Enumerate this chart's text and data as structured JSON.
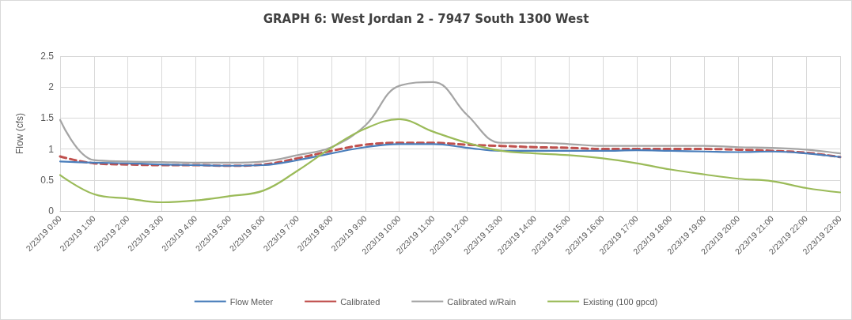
{
  "chart_data": {
    "type": "line",
    "title": "GRAPH 6: West Jordan 2 - 7947 South 1300 West",
    "ylabel": "Flow (cfs)",
    "categories": [
      "2/23/19 0:00",
      "2/23/19 1:00",
      "2/23/19 2:00",
      "2/23/19 3:00",
      "2/23/19 4:00",
      "2/23/19 5:00",
      "2/23/19 6:00",
      "2/23/19 7:00",
      "2/23/19 8:00",
      "2/23/19 9:00",
      "2/23/19 10:00",
      "2/23/19 11:00",
      "2/23/19 12:00",
      "2/23/19 13:00",
      "2/23/19 14:00",
      "2/23/19 15:00",
      "2/23/19 16:00",
      "2/23/19 17:00",
      "2/23/19 18:00",
      "2/23/19 19:00",
      "2/23/19 20:00",
      "2/23/19 21:00",
      "2/23/19 22:00",
      "2/23/19 23:00"
    ],
    "series": [
      {
        "name": "Flow Meter",
        "color": "#4a7ebb",
        "line_style": "solid",
        "values": [
          0.8,
          0.78,
          0.77,
          0.75,
          0.74,
          0.73,
          0.74,
          0.82,
          0.93,
          1.03,
          1.08,
          1.08,
          1.02,
          0.97,
          0.97,
          0.97,
          0.97,
          0.98,
          0.97,
          0.96,
          0.95,
          0.96,
          0.93,
          0.87
        ]
      },
      {
        "name": "Calibrated",
        "color": "#c0504d",
        "line_style": "dashed",
        "values": [
          0.88,
          0.77,
          0.75,
          0.74,
          0.74,
          0.73,
          0.75,
          0.85,
          0.97,
          1.07,
          1.1,
          1.1,
          1.07,
          1.05,
          1.03,
          1.02,
          1.0,
          1.0,
          1.0,
          1.0,
          0.99,
          0.97,
          0.94,
          0.87
        ]
      },
      {
        "name": "Calibrated w/Rain",
        "color": "#a5a5a5",
        "line_style": "solid",
        "values": [
          1.47,
          0.82,
          0.8,
          0.79,
          0.78,
          0.78,
          0.8,
          0.9,
          1.03,
          1.38,
          2.02,
          2.08,
          1.55,
          1.1,
          1.1,
          1.08,
          1.05,
          1.05,
          1.05,
          1.05,
          1.03,
          1.02,
          0.99,
          0.93
        ]
      },
      {
        "name": "Existing (100 gpcd)",
        "color": "#9bbb59",
        "line_style": "solid",
        "values": [
          0.58,
          0.27,
          0.2,
          0.14,
          0.17,
          0.24,
          0.33,
          0.65,
          1.02,
          1.33,
          1.48,
          1.28,
          1.1,
          0.97,
          0.93,
          0.9,
          0.85,
          0.77,
          0.67,
          0.59,
          0.52,
          0.48,
          0.37,
          0.3
        ]
      }
    ],
    "ylim": [
      0,
      2.5
    ],
    "yticks": [
      0,
      0.5,
      1,
      1.5,
      2,
      2.5
    ],
    "grid": true,
    "legend": "bottom",
    "marker": "none"
  }
}
